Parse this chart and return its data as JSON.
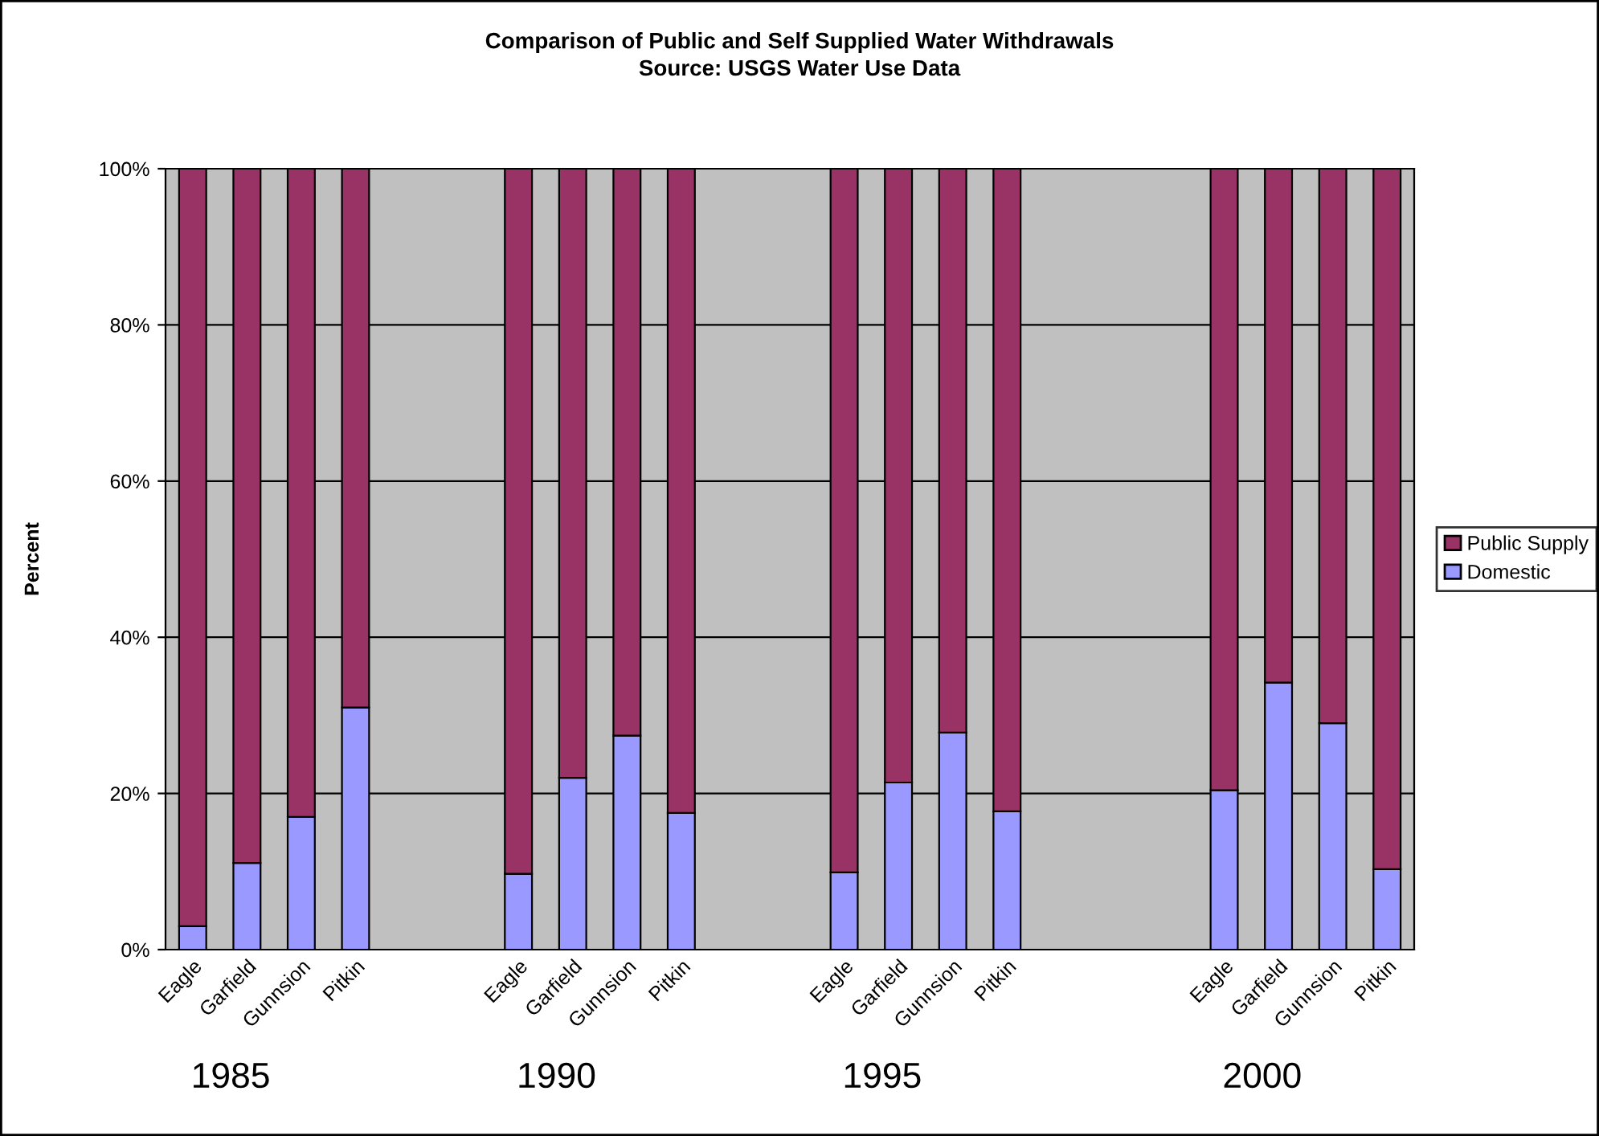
{
  "chart_data": {
    "type": "bar",
    "stacked": true,
    "title": "Comparison of Public and Self Supplied Water Withdrawals",
    "subtitle": "Source: USGS Water Use Data",
    "ylabel": "Percent",
    "categories": [
      "Eagle",
      "Garfield",
      "Gunnsion",
      "Pitkin",
      null,
      null,
      "Eagle",
      "Garfield",
      "Gunnsion",
      "Pitkin",
      null,
      null,
      "Eagle",
      "Garfield",
      "Gunnsion",
      "Pitkin",
      null,
      null,
      null,
      "Eagle",
      "Garfield",
      "Gunnsion",
      "Pitkin"
    ],
    "series": [
      {
        "name": "Domestic",
        "color": "#9999ff",
        "values": [
          3,
          11.1,
          17,
          31,
          null,
          null,
          9.7,
          22,
          27.4,
          17.5,
          null,
          null,
          9.9,
          21.4,
          27.8,
          17.7,
          null,
          null,
          null,
          20.4,
          34.2,
          29,
          10.3
        ]
      },
      {
        "name": "Public Supply",
        "color": "#993366",
        "values": [
          97,
          88.9,
          83,
          69,
          null,
          null,
          90.3,
          78,
          72.6,
          82.5,
          null,
          null,
          90.1,
          78.6,
          72.2,
          82.3,
          null,
          null,
          null,
          79.6,
          65.8,
          71,
          89.7
        ]
      }
    ],
    "annotations": [
      "1985",
      "1990",
      "1995",
      "2000"
    ],
    "ylim": [
      0,
      100
    ],
    "yticks": [
      {
        "value": 0,
        "label": "0%"
      },
      {
        "value": 20,
        "label": "20%"
      },
      {
        "value": 40,
        "label": "40%"
      },
      {
        "value": 60,
        "label": "60%"
      },
      {
        "value": 80,
        "label": "80%"
      },
      {
        "value": 100,
        "label": "100%"
      }
    ],
    "grid": "y",
    "legend": "right"
  }
}
